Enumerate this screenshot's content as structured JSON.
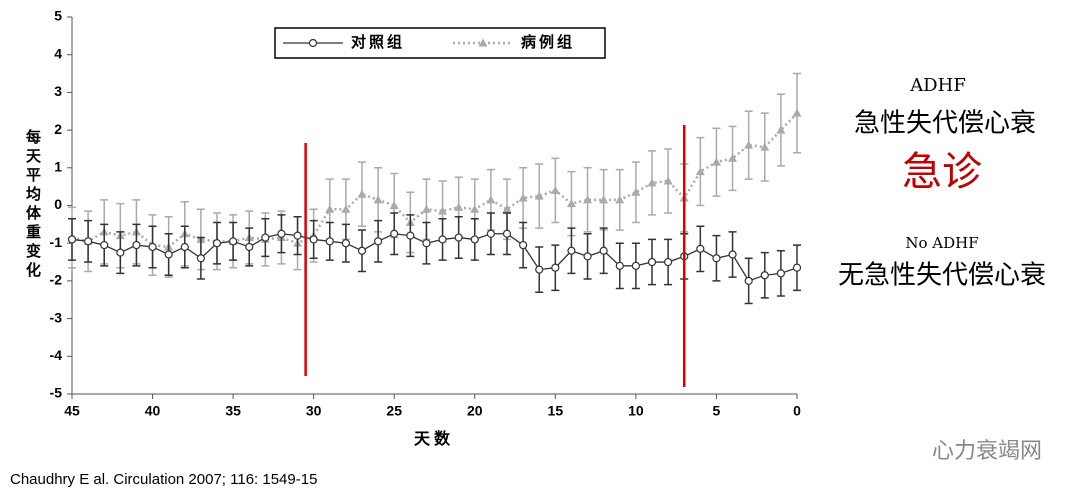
{
  "chart_data": {
    "type": "line",
    "y_label": "每天平均体重变化",
    "x_label": "天数",
    "x": [
      45,
      44,
      43,
      42,
      41,
      40,
      39,
      38,
      37,
      36,
      35,
      34,
      33,
      32,
      31,
      30,
      29,
      28,
      27,
      26,
      25,
      24,
      23,
      22,
      21,
      20,
      19,
      18,
      17,
      16,
      15,
      14,
      13,
      12,
      11,
      10,
      9,
      8,
      7,
      6,
      5,
      4,
      3,
      2,
      1,
      0
    ],
    "series": [
      {
        "name": "对照组",
        "color": "#333333",
        "marker": "circle",
        "dashed": false,
        "values": [
          -0.9,
          -0.95,
          -1.05,
          -1.25,
          -1.05,
          -1.1,
          -1.3,
          -1.1,
          -1.4,
          -1.0,
          -0.95,
          -1.1,
          -0.85,
          -0.75,
          -0.8,
          -0.9,
          -0.95,
          -1.0,
          -1.2,
          -0.95,
          -0.75,
          -0.8,
          -1.0,
          -0.9,
          -0.85,
          -0.9,
          -0.75,
          -0.75,
          -1.05,
          -1.7,
          -1.65,
          -1.2,
          -1.35,
          -1.2,
          -1.6,
          -1.6,
          -1.5,
          -1.5,
          -1.35,
          -1.15,
          -1.4,
          -1.3,
          -2.0,
          -1.85,
          -1.8,
          -1.65
        ],
        "errors": [
          0.55,
          0.55,
          0.55,
          0.55,
          0.55,
          0.55,
          0.55,
          0.55,
          0.55,
          0.55,
          0.5,
          0.5,
          0.5,
          0.5,
          0.5,
          0.5,
          0.5,
          0.5,
          0.55,
          0.55,
          0.55,
          0.55,
          0.55,
          0.55,
          0.55,
          0.55,
          0.55,
          0.55,
          0.6,
          0.6,
          0.6,
          0.6,
          0.6,
          0.6,
          0.6,
          0.6,
          0.6,
          0.6,
          0.6,
          0.6,
          0.6,
          0.6,
          0.6,
          0.6,
          0.6,
          0.6
        ]
      },
      {
        "name": "病例组",
        "color": "#aaaaaa",
        "marker": "triangle",
        "dashed": true,
        "values": [
          -0.85,
          -0.95,
          -0.7,
          -0.8,
          -0.7,
          -1.05,
          -1.1,
          -0.75,
          -0.9,
          -0.95,
          -0.95,
          -0.85,
          -0.9,
          -0.85,
          -1.0,
          -0.8,
          -0.1,
          -0.1,
          0.3,
          0.15,
          0.0,
          -0.45,
          -0.1,
          -0.15,
          -0.05,
          -0.1,
          0.15,
          -0.1,
          0.2,
          0.25,
          0.4,
          0.05,
          0.15,
          0.15,
          0.15,
          0.35,
          0.6,
          0.65,
          0.2,
          0.9,
          1.15,
          1.25,
          1.6,
          1.55,
          2.0,
          2.45
        ],
        "errors": [
          0.8,
          0.8,
          0.85,
          0.85,
          0.85,
          0.8,
          0.8,
          0.85,
          0.8,
          0.75,
          0.7,
          0.7,
          0.7,
          0.7,
          0.7,
          0.7,
          0.8,
          0.8,
          0.85,
          0.85,
          0.85,
          0.8,
          0.8,
          0.8,
          0.8,
          0.8,
          0.8,
          0.8,
          0.8,
          0.85,
          0.85,
          0.85,
          0.85,
          0.8,
          0.8,
          0.8,
          0.85,
          0.85,
          0.9,
          0.9,
          0.9,
          0.85,
          0.9,
          0.9,
          0.95,
          1.05
        ]
      }
    ],
    "xlim": [
      45,
      0
    ],
    "ylim": [
      -5,
      5
    ],
    "xticks": [
      45,
      40,
      35,
      30,
      25,
      20,
      15,
      10,
      5,
      0
    ],
    "yticks": [
      -5,
      -4,
      -3,
      -2,
      -1,
      0,
      1,
      2,
      3,
      4,
      5
    ],
    "vlines": [
      30.5,
      7
    ],
    "vline_color": "#dd0000",
    "annotations": [
      "ADHF",
      "急性失代偿心衰",
      "急诊",
      "No ADHF",
      "无急性失代偿心衰"
    ],
    "citation": "Chaudhry E al. Circulation 2007; 116: 1549-15",
    "watermark": "心力衰竭网"
  }
}
